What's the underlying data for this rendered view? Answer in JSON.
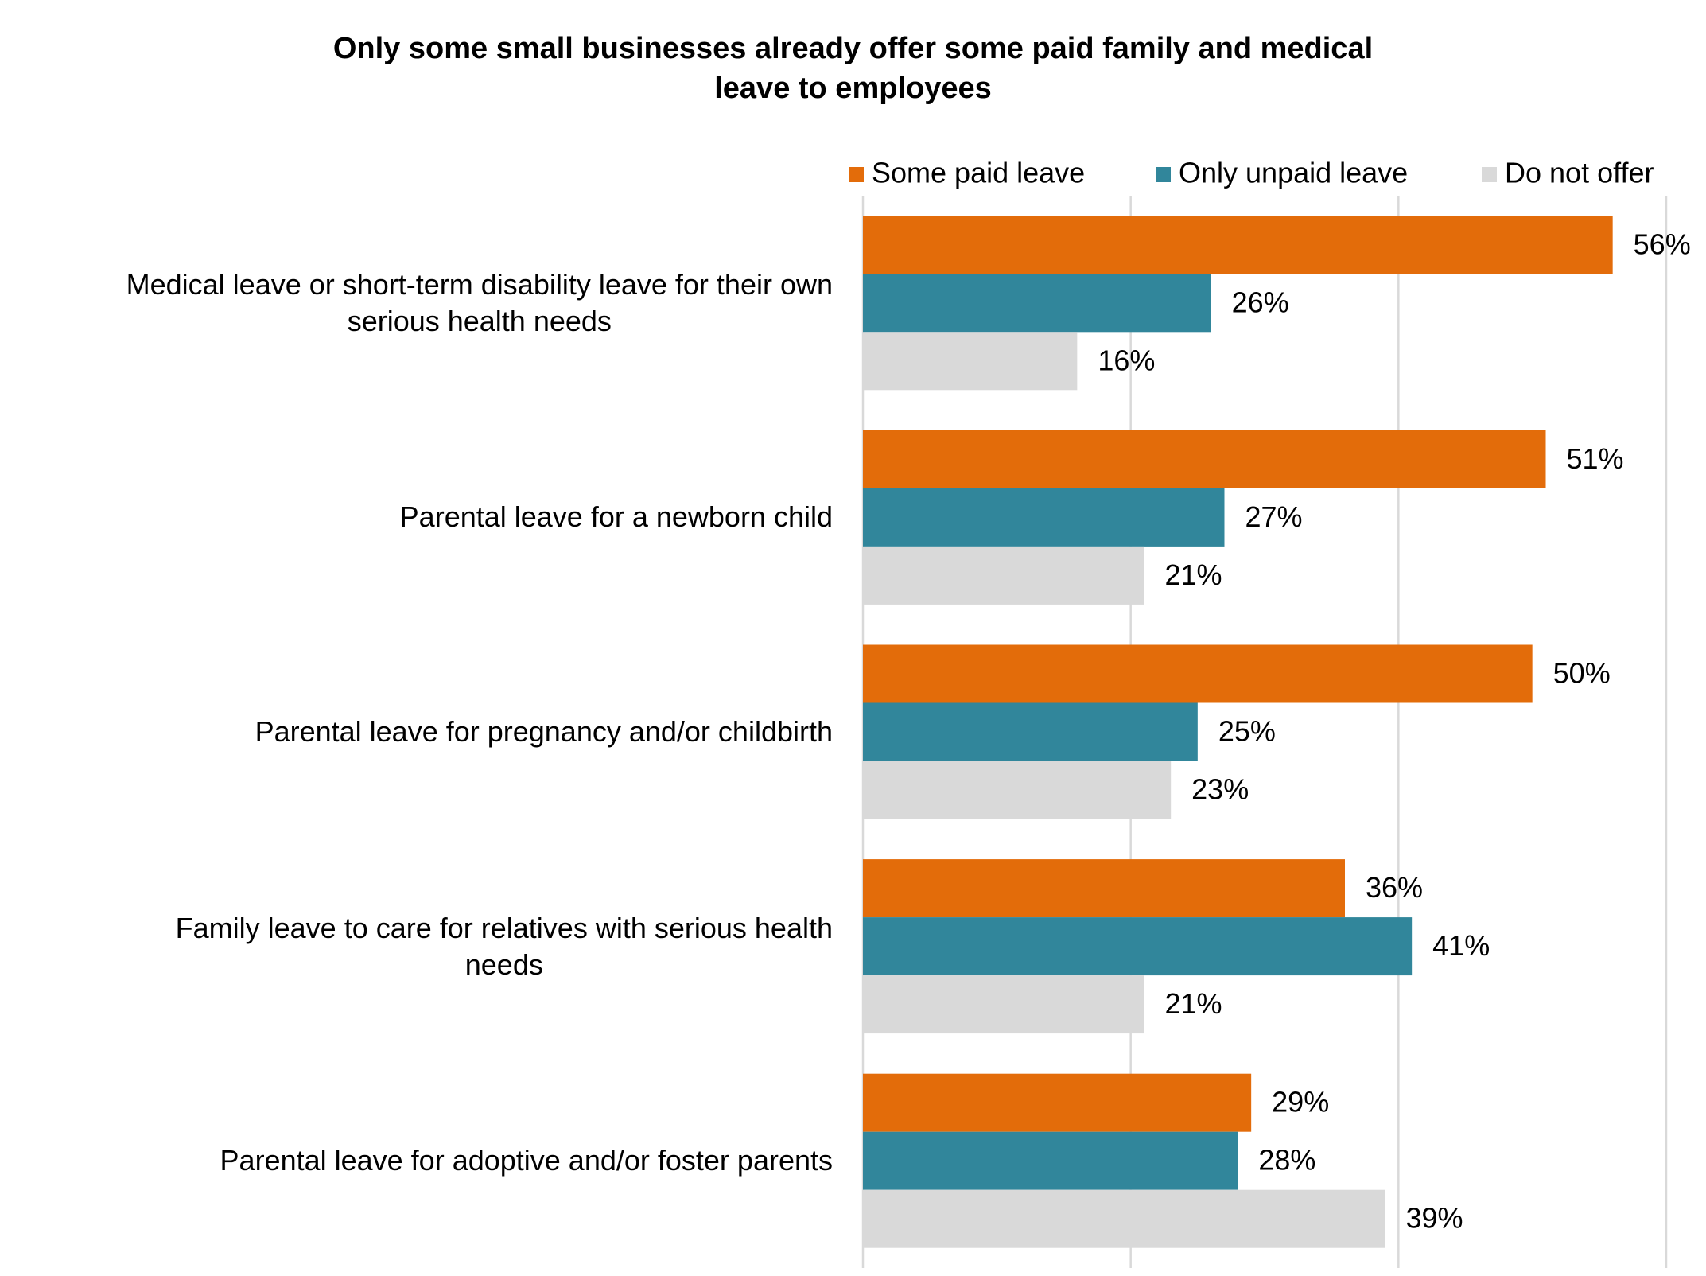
{
  "chart_data": {
    "type": "hbar",
    "title": "Only some small businesses already offer some paid family and medical\nleave to employees",
    "categories": [
      "Medical leave or short-term disability leave for their own\nserious health needs",
      "Parental leave for a newborn child",
      "Parental leave for pregnancy and/or childbirth",
      "Family leave to care for relatives with serious health\nneeds",
      "Parental leave for adoptive and/or foster parents"
    ],
    "series": [
      {
        "name": "Some paid leave",
        "color": "#e36c0a",
        "values": [
          56,
          51,
          50,
          36,
          29
        ],
        "value_labels": [
          "56%",
          "51%",
          "50%",
          "36%",
          "29%"
        ]
      },
      {
        "name": "Only unpaid leave",
        "color": "#31869b",
        "values": [
          26,
          27,
          25,
          41,
          28
        ],
        "value_labels": [
          "26%",
          "27%",
          "25%",
          "41%",
          "28%"
        ]
      },
      {
        "name": "Do not offer",
        "color": "#d9d9d9",
        "values": [
          16,
          21,
          23,
          21,
          39
        ],
        "value_labels": [
          "16%",
          "21%",
          "23%",
          "21%",
          "39%"
        ]
      }
    ],
    "xlim": [
      0,
      60
    ],
    "xticks": [
      0,
      20,
      40,
      60
    ],
    "grid": true,
    "legend": "top-right"
  }
}
